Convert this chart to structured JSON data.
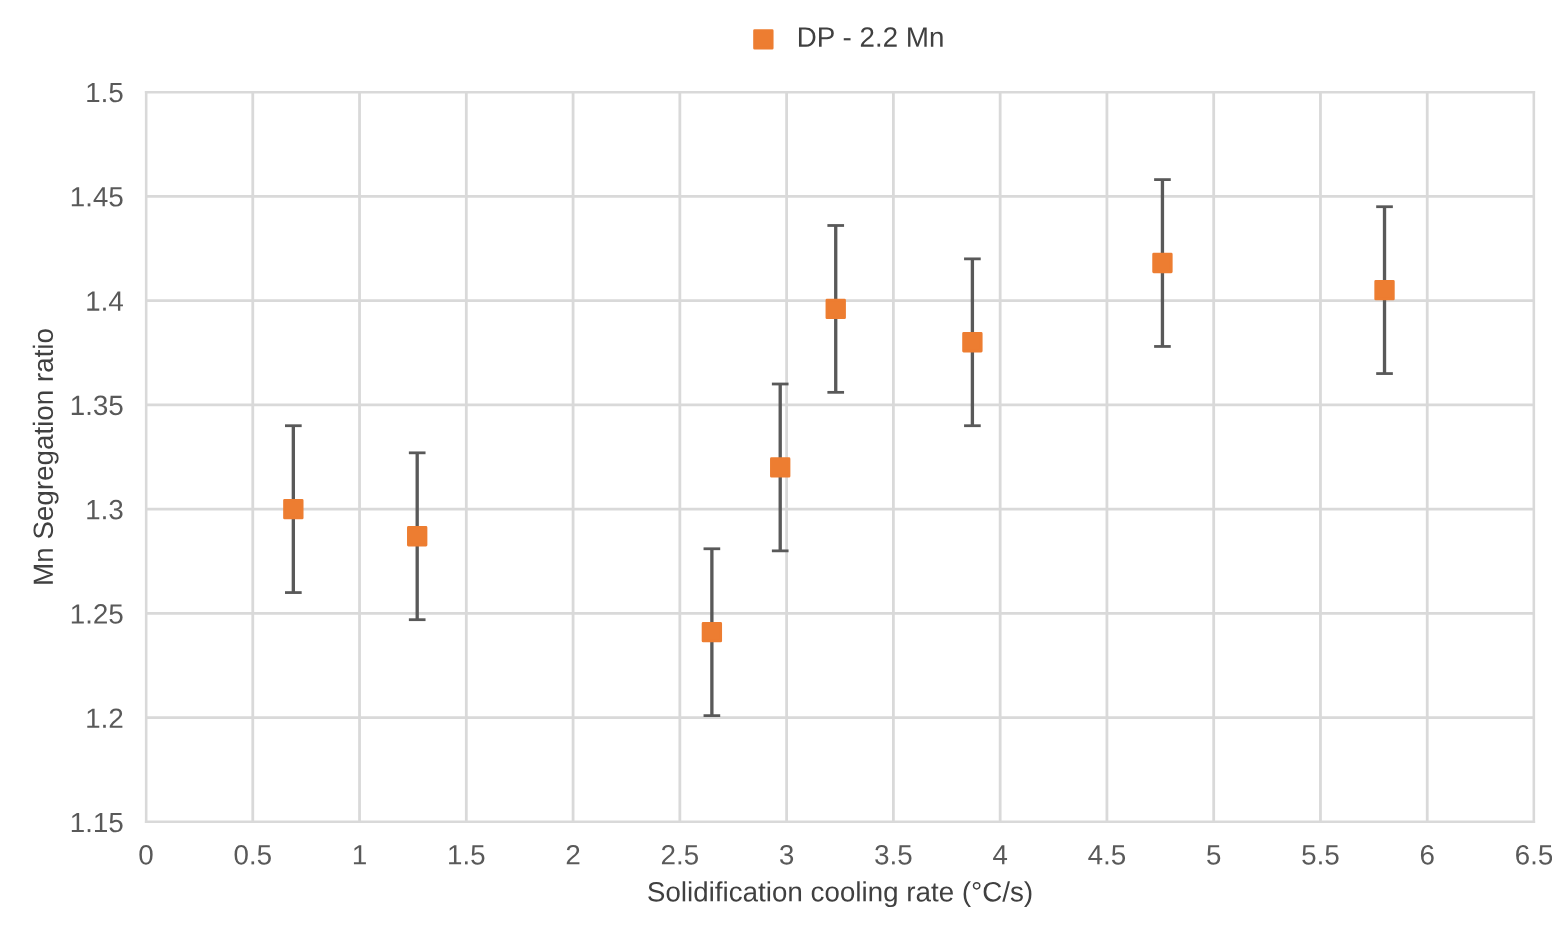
{
  "chart_data": {
    "type": "scatter",
    "xlabel": "Solidification cooling rate (°C/s)",
    "ylabel": "Mn Segregation ratio",
    "series": [
      {
        "name": "DP - 2.2 Mn",
        "color": "#ed7d31",
        "x": [
          0.69,
          1.27,
          2.65,
          2.97,
          3.23,
          3.87,
          4.76,
          5.8
        ],
        "values": [
          1.3,
          1.287,
          1.241,
          1.32,
          1.396,
          1.38,
          1.418,
          1.405
        ],
        "errors": [
          0.04,
          0.04,
          0.04,
          0.04,
          0.04,
          0.04,
          0.04,
          0.04
        ]
      }
    ],
    "xlim": [
      0,
      6.5
    ],
    "xticks": [
      0,
      0.5,
      1,
      1.5,
      2,
      2.5,
      3,
      3.5,
      4,
      4.5,
      5,
      5.5,
      6,
      6.5
    ],
    "ylim": [
      1.15,
      1.5
    ],
    "yticks": [
      1.15,
      1.2,
      1.25,
      1.3,
      1.35,
      1.4,
      1.45,
      1.5
    ],
    "grid": true,
    "legend": "top",
    "marker": "square"
  }
}
